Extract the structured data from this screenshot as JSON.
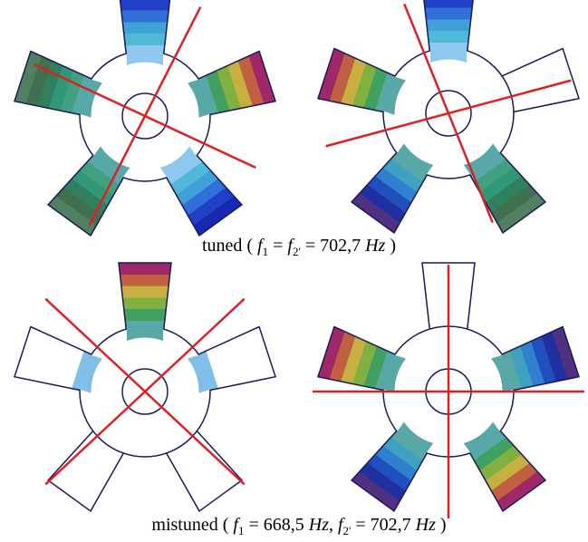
{
  "captions": [
    [
      "tuned (",
      "f",
      "1",
      "=",
      "f",
      "2'",
      "=",
      "702,7",
      "Hz",
      ")"
    ],
    [
      "mistuned (",
      "f",
      "1",
      "=",
      "668,5",
      "Hz",
      ",",
      "f",
      "2'",
      "=",
      "702,7",
      "Hz",
      ")"
    ]
  ]
}
